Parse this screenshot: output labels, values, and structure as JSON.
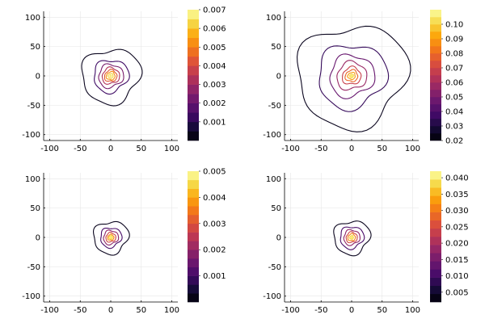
{
  "chart_data": [
    {
      "type": "contour",
      "xlim": [
        -110,
        110
      ],
      "ylim": [
        -110,
        110
      ],
      "x_ticks": [
        -100,
        -50,
        0,
        50,
        100
      ],
      "y_ticks": [
        -100,
        -50,
        0,
        50,
        100
      ],
      "grid": true,
      "center": [
        0,
        0
      ],
      "contour_radii": [
        47,
        28,
        20,
        14,
        10,
        7,
        4
      ],
      "colorbar": {
        "min": 0,
        "max": 0.007,
        "levels": 14,
        "ticks": [
          0.001,
          0.002,
          0.003,
          0.004,
          0.005,
          0.006,
          0.007
        ],
        "tick_labels": [
          "0.001",
          "0.002",
          "0.003",
          "0.004",
          "0.005",
          "0.006",
          "0.007"
        ]
      }
    },
    {
      "type": "contour",
      "xlim": [
        -110,
        110
      ],
      "ylim": [
        -110,
        110
      ],
      "x_ticks": [
        -100,
        -50,
        0,
        50,
        100
      ],
      "y_ticks": [
        -100,
        -50,
        0,
        50,
        100
      ],
      "grid": true,
      "center": [
        0,
        0
      ],
      "contour_radii": [
        88,
        55,
        36,
        24,
        15,
        10,
        6,
        3
      ],
      "colorbar": {
        "min": 0.02,
        "max": 0.11,
        "levels": 18,
        "ticks": [
          0.02,
          0.03,
          0.04,
          0.05,
          0.06,
          0.07,
          0.08,
          0.09,
          0.1
        ],
        "tick_labels": [
          "0.02",
          "0.03",
          "0.04",
          "0.05",
          "0.06",
          "0.07",
          "0.08",
          "0.09",
          "0.10"
        ]
      }
    },
    {
      "type": "contour",
      "xlim": [
        -110,
        110
      ],
      "ylim": [
        -110,
        110
      ],
      "x_ticks": [
        -100,
        -50,
        0,
        50,
        100
      ],
      "y_ticks": [
        -100,
        -50,
        0,
        50,
        100
      ],
      "grid": true,
      "center": [
        0,
        0
      ],
      "contour_radii": [
        28,
        17,
        12,
        8,
        5,
        3
      ],
      "colorbar": {
        "min": 0,
        "max": 0.005,
        "levels": 15,
        "ticks": [
          0.001,
          0.002,
          0.003,
          0.004,
          0.005
        ],
        "tick_labels": [
          "0.001",
          "0.002",
          "0.003",
          "0.004",
          "0.005"
        ]
      }
    },
    {
      "type": "contour",
      "xlim": [
        -110,
        110
      ],
      "ylim": [
        -110,
        110
      ],
      "x_ticks": [
        -100,
        -50,
        0,
        50,
        100
      ],
      "y_ticks": [
        -100,
        -50,
        0,
        50,
        100
      ],
      "grid": true,
      "center": [
        0,
        0
      ],
      "contour_radii": [
        29,
        19,
        13,
        9,
        6,
        3
      ],
      "colorbar": {
        "min": 0.002,
        "max": 0.042,
        "levels": 16,
        "ticks": [
          0.005,
          0.01,
          0.015,
          0.02,
          0.025,
          0.03,
          0.035,
          0.04
        ],
        "tick_labels": [
          "0.005",
          "0.010",
          "0.015",
          "0.020",
          "0.025",
          "0.030",
          "0.035",
          "0.040"
        ]
      }
    }
  ]
}
